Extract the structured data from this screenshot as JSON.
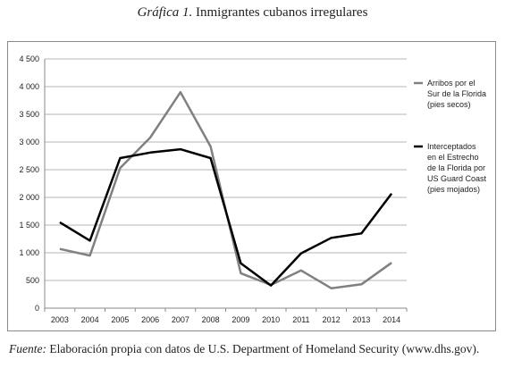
{
  "title": {
    "prefix": "Gráfica 1.",
    "text": "Inmigrantes cubanos irregulares"
  },
  "source": {
    "label": "Fuente:",
    "text": "Elaboración propia con datos de U.S. Department of Homeland Security (",
    "link": "www.dhs.gov",
    "suffix": ")."
  },
  "chart_data": {
    "type": "line",
    "x": [
      "2003",
      "2004",
      "2005",
      "2006",
      "2007",
      "2008",
      "2009",
      "2010",
      "2011",
      "2012",
      "2013",
      "2014"
    ],
    "ylim": [
      0,
      4500
    ],
    "yticks": [
      "0",
      "500",
      "1 000",
      "1 500",
      "2 000",
      "2 500",
      "3 000",
      "3 500",
      "4 000",
      "4 500"
    ],
    "ytick_values": [
      0,
      500,
      1000,
      1500,
      2000,
      2500,
      3000,
      3500,
      4000,
      4500
    ],
    "grid": true,
    "legend_position": "right",
    "series": [
      {
        "name": "Arribos por el Sur de la Florida (pies secos)",
        "legend_lines": [
          "Arribos por el",
          "Sur de la Florida",
          "(pies secos)"
        ],
        "color": "#808080",
        "values": [
          1070,
          950,
          2530,
          3080,
          3900,
          2920,
          630,
          420,
          680,
          360,
          430,
          820
        ]
      },
      {
        "name": "Interceptados en el Estrecho de la Florida por US Guard Coast (pies mojados)",
        "legend_lines": [
          "Interceptados",
          "en el Estrecho",
          "de la Florida por",
          "US Guard Coast",
          "(pies mojados)"
        ],
        "color": "#000000",
        "values": [
          1550,
          1220,
          2710,
          2810,
          2870,
          2710,
          810,
          410,
          990,
          1270,
          1350,
          2070
        ]
      }
    ]
  }
}
